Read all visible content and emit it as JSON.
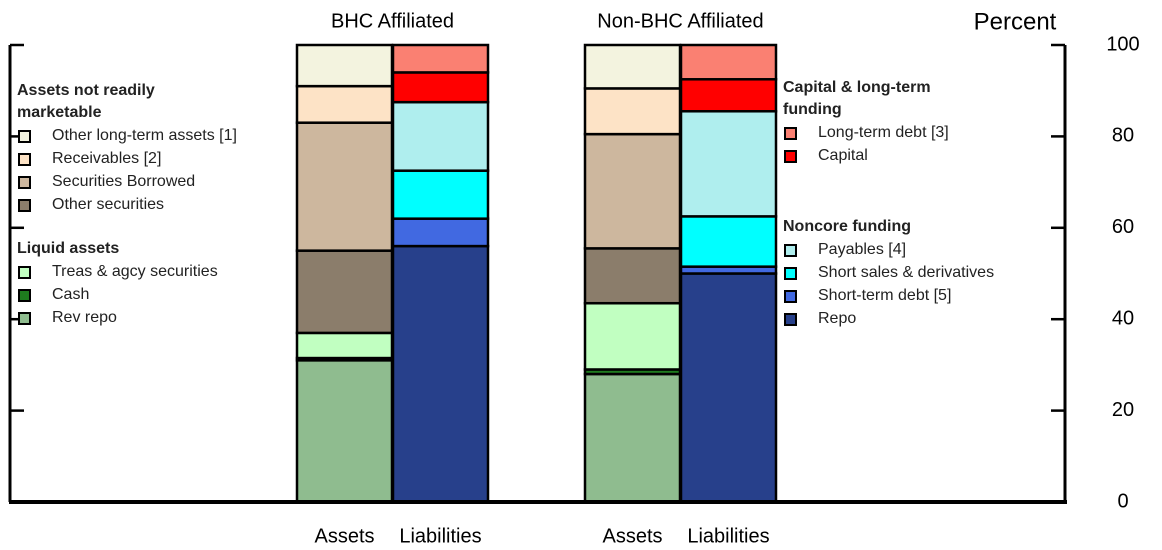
{
  "chart_data": {
    "type": "stacked-bar",
    "group_titles": [
      "BHC Affiliated",
      "Non-BHC Affiliated"
    ],
    "categories": [
      "Assets",
      "Liabilities",
      "Assets",
      "Liabilities"
    ],
    "y_label": "Percent",
    "ylim": [
      0,
      100
    ],
    "yticks": [
      0,
      20,
      40,
      60,
      80,
      100
    ],
    "legend_groups": [
      {
        "title": "Assets not readily marketable",
        "position": "left",
        "series": [
          {
            "name": "Other long-term assets [1]",
            "color": "#f3f3df",
            "values": [
              9,
              null,
              9.5,
              null
            ]
          },
          {
            "name": "Receivables [2]",
            "color": "#fde3c6",
            "values": [
              8,
              null,
              10,
              null
            ]
          },
          {
            "name": "Securities Borrowed",
            "color": "#cdb79e",
            "values": [
              28,
              null,
              25,
              null
            ]
          },
          {
            "name": "Other securities",
            "color": "#8b7d6b",
            "values": [
              18,
              null,
              12,
              null
            ]
          }
        ]
      },
      {
        "title": "Liquid assets",
        "position": "left",
        "series": [
          {
            "name": "Treas & agcy securities",
            "color": "#c1ffc1",
            "values": [
              5.5,
              null,
              14.5,
              null
            ]
          },
          {
            "name": "Cash",
            "color": "#1e7b1e",
            "values": [
              0.5,
              null,
              1,
              null
            ]
          },
          {
            "name": "Rev repo",
            "color": "#8fbc8f",
            "values": [
              31,
              null,
              28,
              null
            ]
          }
        ]
      },
      {
        "title": "Capital & long-term funding",
        "position": "right",
        "series": [
          {
            "name": "Long-term debt [3]",
            "color": "#fa8072",
            "values": [
              null,
              6,
              null,
              7.5
            ]
          },
          {
            "name": "Capital",
            "color": "#ff0000",
            "values": [
              null,
              6.5,
              null,
              7
            ]
          }
        ]
      },
      {
        "title": "Noncore funding",
        "position": "right",
        "series": [
          {
            "name": "Payables [4]",
            "color": "#afeeee",
            "values": [
              null,
              15,
              null,
              23
            ]
          },
          {
            "name": "Short sales & derivatives",
            "color": "#00ffff",
            "values": [
              null,
              10.5,
              null,
              11
            ]
          },
          {
            "name": "Short-term debt [5]",
            "color": "#4169e1",
            "values": [
              null,
              6,
              null,
              1.5
            ]
          },
          {
            "name": "Repo",
            "color": "#27408b",
            "values": [
              null,
              56,
              null,
              50
            ]
          }
        ]
      }
    ]
  }
}
